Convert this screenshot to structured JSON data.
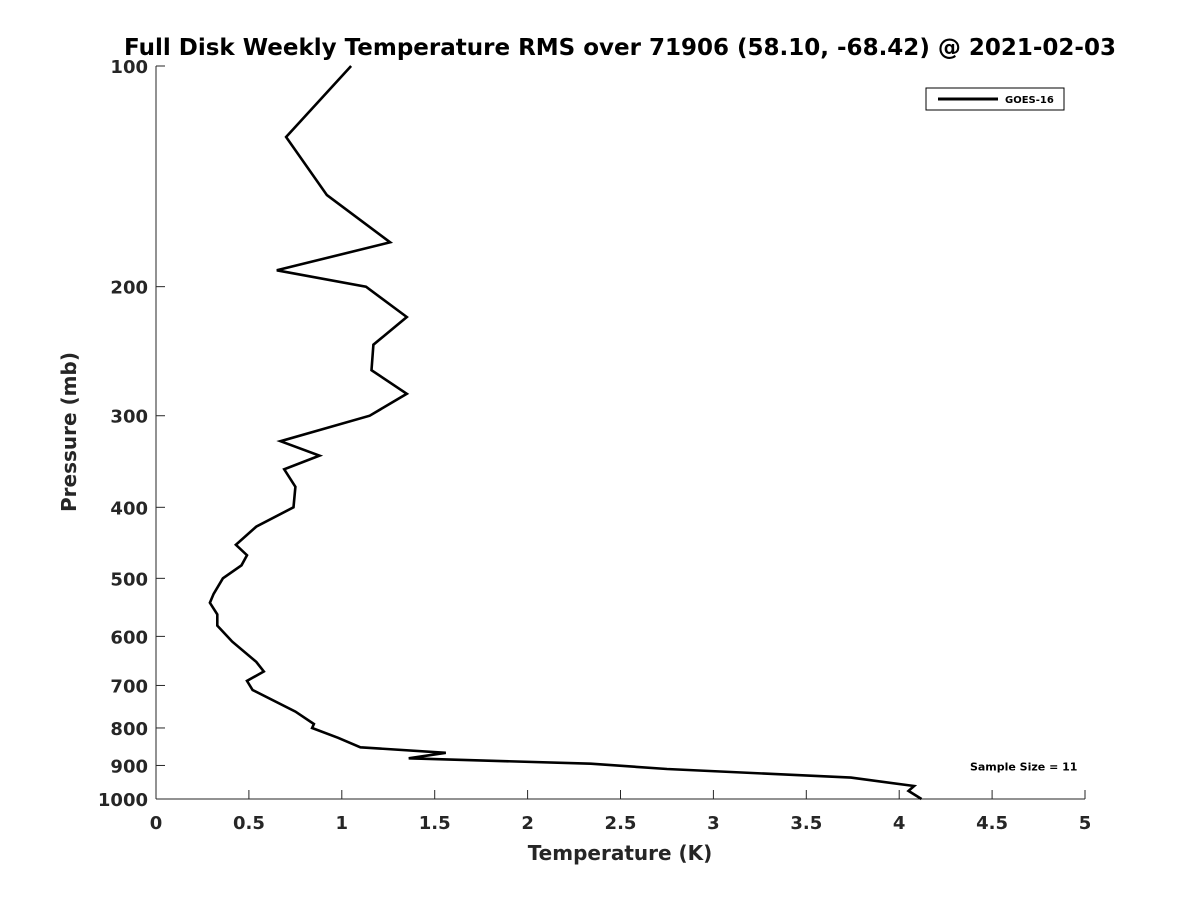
{
  "chart_data": {
    "type": "line",
    "title": "Full Disk Weekly Temperature RMS over 71906 (58.10, -68.42) @ 2021-02-03",
    "xlabel": "Temperature (K)",
    "ylabel": "Pressure (mb)",
    "xlim": [
      0,
      5
    ],
    "ylim": [
      100,
      1000
    ],
    "y_scale": "log",
    "y_reversed": true,
    "x_ticks": [
      0,
      0.5,
      1,
      1.5,
      2,
      2.5,
      3,
      3.5,
      4,
      4.5,
      5
    ],
    "x_tick_labels": [
      "0",
      "0.5",
      "1",
      "1.5",
      "2",
      "2.5",
      "3",
      "3.5",
      "4",
      "4.5",
      "5"
    ],
    "y_ticks": [
      100,
      200,
      300,
      400,
      500,
      600,
      700,
      800,
      900,
      1000
    ],
    "y_tick_labels": [
      "100",
      "200",
      "300",
      "400",
      "500",
      "600",
      "700",
      "800",
      "900",
      "1000"
    ],
    "grid": false,
    "legend_position": "top-right",
    "series": [
      {
        "name": "GOES-16",
        "color": "#000000",
        "points": [
          [
            1.05,
            100
          ],
          [
            0.7,
            125
          ],
          [
            0.92,
            150
          ],
          [
            1.26,
            174
          ],
          [
            0.65,
            190
          ],
          [
            1.13,
            200
          ],
          [
            1.35,
            220
          ],
          [
            1.17,
            240
          ],
          [
            1.16,
            260
          ],
          [
            1.35,
            280
          ],
          [
            1.15,
            300
          ],
          [
            0.67,
            325
          ],
          [
            0.88,
            340
          ],
          [
            0.69,
            355
          ],
          [
            0.75,
            375
          ],
          [
            0.74,
            400
          ],
          [
            0.54,
            425
          ],
          [
            0.43,
            450
          ],
          [
            0.49,
            465
          ],
          [
            0.46,
            480
          ],
          [
            0.36,
            500
          ],
          [
            0.31,
            525
          ],
          [
            0.29,
            540
          ],
          [
            0.33,
            560
          ],
          [
            0.33,
            580
          ],
          [
            0.41,
            610
          ],
          [
            0.54,
            650
          ],
          [
            0.58,
            670
          ],
          [
            0.49,
            690
          ],
          [
            0.52,
            710
          ],
          [
            0.75,
            760
          ],
          [
            0.85,
            790
          ],
          [
            0.84,
            800
          ],
          [
            0.98,
            825
          ],
          [
            1.1,
            850
          ],
          [
            1.56,
            865
          ],
          [
            1.36,
            880
          ],
          [
            2.34,
            895
          ],
          [
            2.75,
            910
          ],
          [
            3.74,
            935
          ],
          [
            4.08,
            960
          ],
          [
            4.05,
            975
          ],
          [
            4.12,
            1000
          ]
        ]
      }
    ],
    "annotations": [
      {
        "text": "Sample Size = 11",
        "x": 4.67,
        "y": 900
      }
    ]
  }
}
